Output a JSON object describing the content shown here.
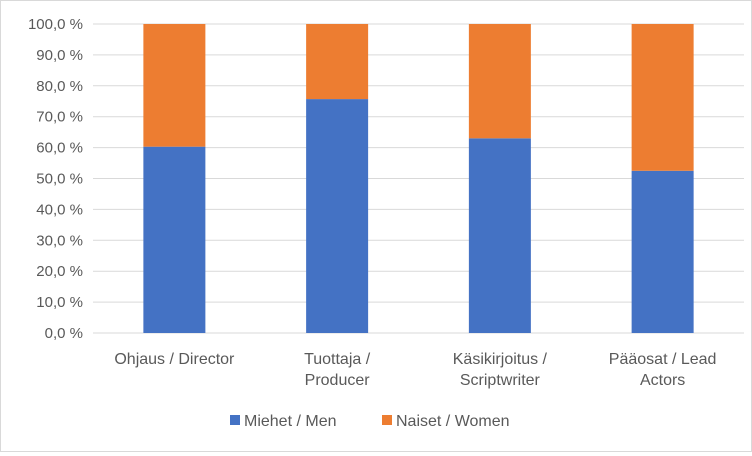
{
  "chart_data": {
    "type": "bar",
    "stacked": true,
    "percent_stacked": true,
    "categories": [
      [
        "Ohjaus / Director"
      ],
      [
        "Tuottaja /",
        "Producer"
      ],
      [
        "Käsikirjoitus /",
        "Scriptwriter"
      ],
      [
        "Pääosat / Lead",
        "Actors"
      ]
    ],
    "series": [
      {
        "name": "Miehet / Men",
        "color": "#4472C4",
        "values": [
          60.3,
          75.7,
          63.0,
          52.5
        ]
      },
      {
        "name": "Naiset / Women",
        "color": "#ED7D31",
        "values": [
          39.7,
          24.3,
          37.0,
          47.5
        ]
      }
    ],
    "y_ticks": [
      "0,0 %",
      "10,0 %",
      "20,0 %",
      "30,0 %",
      "40,0 %",
      "50,0 %",
      "60,0 %",
      "70,0 %",
      "80,0 %",
      "90,0 %",
      "100,0 %"
    ],
    "ylim": [
      0,
      100
    ],
    "grid": true,
    "legend": "bottom",
    "gridline_color": "#d9d9d9"
  }
}
